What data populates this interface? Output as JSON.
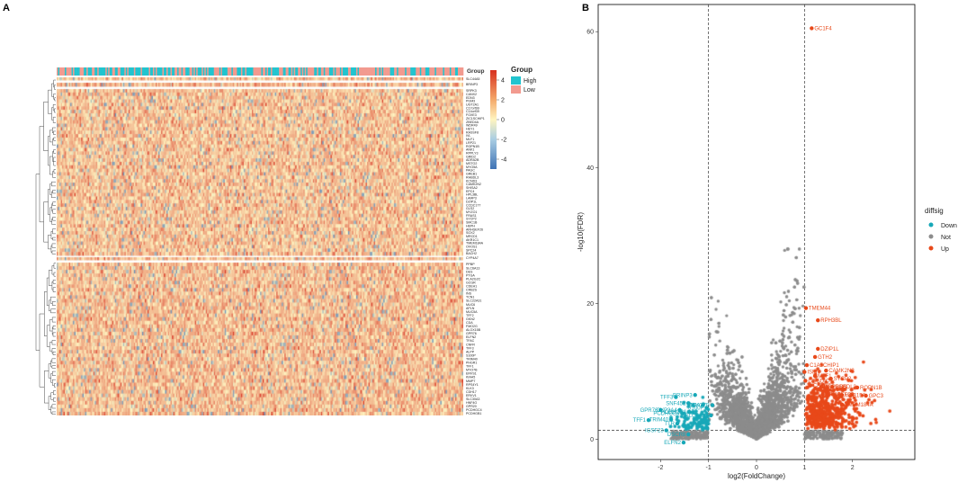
{
  "chart_data": [
    {
      "type": "heatmap",
      "panel_label": "A",
      "annotation_track_label": "Group",
      "legend_group_title": "Group",
      "legend_group_items": [
        {
          "label": "High",
          "color": "#21c4cf"
        },
        {
          "label": "Low",
          "color": "#f29a8f"
        }
      ],
      "color_scale": {
        "ticks": [
          "4",
          "2",
          "0",
          "-2",
          "-4"
        ],
        "tick_values": [
          4,
          2,
          0,
          -2,
          -4
        ],
        "range": [
          -5,
          5
        ],
        "colors": {
          "low": "#3f73b5",
          "mid": "#fff5c0",
          "high": "#d7301f"
        }
      },
      "cluster1_genes": [
        "SLC44A5",
        "BRINP3",
        "SRPK3",
        "CANX2",
        "EDN3",
        "PGM3",
        "UGT2A1",
        "C17orf99",
        "C14orf39",
        "FOXE3",
        "ZIC1SCHIP1",
        "ZBED4A",
        "WDR49",
        "HEY1",
        "RASSF8",
        "IVL",
        "MLF1",
        "LRP21",
        "ROPN1B",
        "ANK1",
        "RPPLY3",
        "GRID2",
        "ADRA2B",
        "MSTO2",
        "MYO5A",
        "PAGC",
        "GREB1",
        "RHBDL3",
        "KCND3",
        "CAMK2N2",
        "SHISA2",
        "EPC4",
        "HPL3BL",
        "LAMP3",
        "DZIP1L",
        "CCDC177",
        "GLS2",
        "MYZO1",
        "FRAS1",
        "SYCP2",
        "SMC1B",
        "HEPH",
        "ARHGEF26",
        "SOX2",
        "MRCD1",
        "AKR1C1",
        "TMEM184A",
        "OVOS1",
        "SPC24",
        "BACH2"
      ],
      "cluster2_genes": [
        "CYP4A7",
        "PPBP",
        "SLC6A13",
        "DES",
        "PTGA",
        "PLA2G2C",
        "GCGR",
        "CDEH1",
        "CRB2S",
        "INS",
        "TCN1",
        "SLC22A31",
        "MUC6",
        "APLN",
        "MUC5A",
        "TFF2",
        "GKN2",
        "CDA",
        "FMO2G",
        "ALOX15B",
        "GPR76",
        "ELFN2",
        "TFAC",
        "CNFR",
        "TFF3",
        "ALPP",
        "S100P",
        "TRIM40",
        "PHGR1",
        "TFF1",
        "MYO7B",
        "ERVS1",
        "KIAA5",
        "MMP7",
        "RPS4Y1",
        "KLK3",
        "CDH17",
        "ERVV1",
        "SLC30A3",
        "HNF4G",
        "GPR20",
        "PCDHGC4",
        "PCDHGB1"
      ],
      "n_samples": 300
    },
    {
      "type": "scatter",
      "panel_label": "B",
      "xlabel": "log2(FoldChange)",
      "ylabel": "-log10(FDR)",
      "xlim": [
        -3.3,
        3.3
      ],
      "ylim": [
        -3,
        64
      ],
      "xticks": [
        -2,
        -1,
        0,
        1,
        2
      ],
      "yticks": [
        0,
        20,
        40,
        60
      ],
      "vlines": [
        -1,
        1
      ],
      "hline": 1.3,
      "legend_title": "diffsig",
      "series": [
        {
          "name": "Down",
          "color": "#17a8b8"
        },
        {
          "name": "Not",
          "color": "#8c8c8c"
        },
        {
          "name": "Up",
          "color": "#e8491a"
        }
      ],
      "up_labeled": [
        {
          "label": "GC1F4",
          "x": 1.15,
          "y": 60.5
        },
        {
          "label": "TMEM44",
          "x": 1.03,
          "y": 19.3
        },
        {
          "label": "RPH3BL",
          "x": 1.28,
          "y": 17.5
        },
        {
          "label": "DZIP1L",
          "x": 1.28,
          "y": 13.3
        },
        {
          "label": "GTH2",
          "x": 1.22,
          "y": 12.1
        },
        {
          "label": "C1A5CHIP1",
          "x": 1.05,
          "y": 10.9
        },
        {
          "label": "CAMK2N2",
          "x": 1.45,
          "y": 10.1
        },
        {
          "label": "ISKN",
          "x": 1.0,
          "y": 9.9
        },
        {
          "label": "MLF1",
          "x": 1.22,
          "y": 9.3
        },
        {
          "label": "SYCP2",
          "x": 1.55,
          "y": 8.9
        },
        {
          "label": "C2ISDIC",
          "x": 1.02,
          "y": 8.6
        },
        {
          "label": "CAMK5",
          "x": 1.12,
          "y": 7.9
        },
        {
          "label": "ROPN1B",
          "x": 2.1,
          "y": 7.6
        },
        {
          "label": "HNPGDS",
          "x": 1.35,
          "y": 7.7
        },
        {
          "label": "RHBDL3",
          "x": 1.58,
          "y": 7.7
        },
        {
          "label": "ARHGEF26",
          "x": 1.38,
          "y": 6.6
        },
        {
          "label": "MSB15A",
          "x": 1.78,
          "y": 6.5
        },
        {
          "label": "GPC3",
          "x": 2.28,
          "y": 6.4
        },
        {
          "label": "TMEM184A",
          "x": 1.78,
          "y": 5.1
        }
      ],
      "down_labeled": [
        {
          "label": "S100P",
          "x": -1.04,
          "y": 4.6
        },
        {
          "label": "BRINP3",
          "x": -1.28,
          "y": 6.5
        },
        {
          "label": "TFF3",
          "x": -1.68,
          "y": 6.2
        },
        {
          "label": "SNF45L",
          "x": -1.42,
          "y": 5.3
        },
        {
          "label": "CDA",
          "x": -1.12,
          "y": 5.0
        },
        {
          "label": "MYO7B",
          "x": -0.92,
          "y": 5.0
        },
        {
          "label": "GPR76",
          "x": -2.0,
          "y": 4.3
        },
        {
          "label": "CYP3A4",
          "x": -1.6,
          "y": 4.3
        },
        {
          "label": "PCDHGB1",
          "x": -1.4,
          "y": 4.0
        },
        {
          "label": "PCDHGB4",
          "x": -1.55,
          "y": 3.8
        },
        {
          "label": "SLC6A13",
          "x": -0.95,
          "y": 3.5
        },
        {
          "label": "TRIM40",
          "x": -1.78,
          "y": 2.9
        },
        {
          "label": "TTR",
          "x": -1.65,
          "y": 2.3
        },
        {
          "label": "TFF1",
          "x": -2.25,
          "y": 2.8
        },
        {
          "label": "IGSF23",
          "x": -1.88,
          "y": 1.3
        },
        {
          "label": "DSCR8",
          "x": -1.42,
          "y": 0.7
        },
        {
          "label": "ELFN2",
          "x": -1.52,
          "y": -0.5
        }
      ]
    }
  ]
}
